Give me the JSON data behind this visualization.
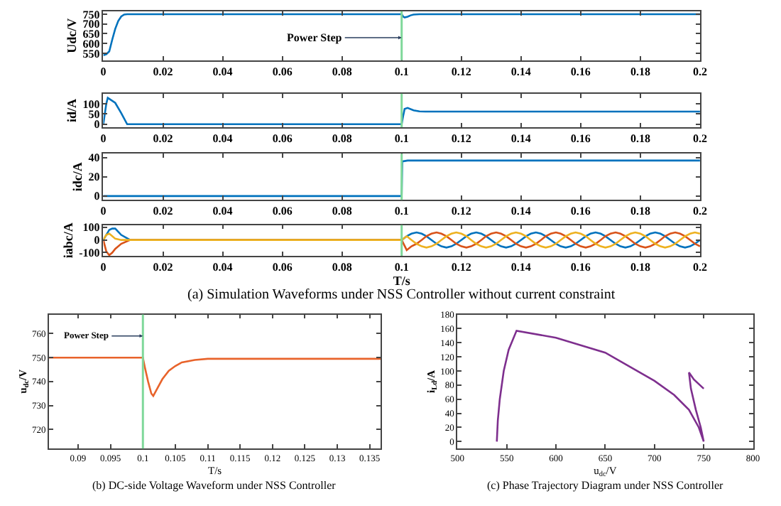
{
  "chart_data": [
    {
      "type": "line",
      "ylabel": "Udc/V",
      "xlim": [
        0,
        0.2
      ],
      "xticks": [
        0,
        0.02,
        0.04,
        0.06,
        0.08,
        0.1,
        0.12,
        0.14,
        0.16,
        0.18,
        0.2
      ],
      "ylim": [
        515,
        765
      ],
      "yticks": [
        550,
        600,
        650,
        700,
        750
      ],
      "x": [
        0,
        0.001,
        0.002,
        0.003,
        0.004,
        0.005,
        0.006,
        0.007,
        0.008,
        0.1,
        0.1005,
        0.101,
        0.102,
        0.103,
        0.104,
        0.106,
        0.2
      ],
      "series": [
        {
          "color": "#0072bd",
          "values": [
            540,
            545,
            560,
            620,
            675,
            715,
            738,
            748,
            750,
            750,
            738,
            733,
            737,
            744,
            748,
            750,
            750
          ]
        }
      ],
      "ref_lines": [
        {
          "axis": "x",
          "value": 0.1,
          "label": "Power Step",
          "color": "#7fd89a"
        }
      ]
    },
    {
      "type": "line",
      "ylabel": "id/A",
      "xlim": [
        0,
        0.2
      ],
      "xticks": [
        0,
        0.02,
        0.04,
        0.06,
        0.08,
        0.1,
        0.12,
        0.14,
        0.16,
        0.18,
        0.2
      ],
      "ylim": [
        -15,
        150
      ],
      "yticks": [
        0,
        50,
        100
      ],
      "x": [
        0,
        0.001,
        0.0015,
        0.004,
        0.006,
        0.008,
        0.1,
        0.1005,
        0.101,
        0.102,
        0.104,
        0.106,
        0.108,
        0.2
      ],
      "series": [
        {
          "color": "#0072bd",
          "values": [
            0,
            100,
            130,
            105,
            55,
            0,
            0,
            40,
            75,
            80,
            68,
            63,
            62,
            62
          ]
        }
      ],
      "ref_lines": [
        {
          "axis": "x",
          "value": 0.1,
          "color": "#7fd89a"
        }
      ]
    },
    {
      "type": "line",
      "ylabel": "idc/A",
      "xlim": [
        0,
        0.2
      ],
      "xticks": [
        0,
        0.02,
        0.04,
        0.06,
        0.08,
        0.1,
        0.12,
        0.14,
        0.16,
        0.18,
        0.2
      ],
      "ylim": [
        -4,
        44
      ],
      "yticks": [
        0,
        20,
        40
      ],
      "x": [
        0,
        0.1,
        0.1002,
        0.102,
        0.2
      ],
      "series": [
        {
          "color": "#0072bd",
          "values": [
            0,
            0,
            36,
            37,
            37
          ]
        }
      ],
      "ref_lines": [
        {
          "axis": "x",
          "value": 0.1,
          "color": "#7fd89a"
        }
      ]
    },
    {
      "type": "line",
      "ylabel": "iabc/A",
      "xlabel": "T/s",
      "xlim": [
        0,
        0.2
      ],
      "xticks": [
        0,
        0.02,
        0.04,
        0.06,
        0.08,
        0.1,
        0.12,
        0.14,
        0.16,
        0.18,
        0.2
      ],
      "ylim": [
        -125,
        118
      ],
      "yticks": [
        -100,
        0,
        100
      ],
      "x": [
        0,
        0.001,
        0.002,
        0.003,
        0.004,
        0.006,
        0.009,
        0.1,
        0.1017,
        0.1033,
        0.105,
        0.1067,
        0.1083,
        0.11,
        0.1117,
        0.1133,
        0.115,
        0.1167,
        0.1183,
        0.12,
        0.1217,
        0.1233,
        0.125,
        0.1267,
        0.1283,
        0.13,
        0.1317,
        0.1333,
        0.135,
        0.1367,
        0.1383,
        0.14,
        0.1417,
        0.1433,
        0.145,
        0.1467,
        0.1483,
        0.15,
        0.1517,
        0.1533,
        0.155,
        0.1567,
        0.1583,
        0.16,
        0.1617,
        0.1633,
        0.165,
        0.1667,
        0.1683,
        0.17,
        0.1717,
        0.1733,
        0.175,
        0.1767,
        0.1783,
        0.18,
        0.1817,
        0.1833,
        0.185,
        0.1867,
        0.1883,
        0.19,
        0.1917,
        0.1933,
        0.195,
        0.1967,
        0.1983,
        0.2
      ],
      "series": [
        {
          "color": "#0072bd",
          "values": [
            0,
            40,
            80,
            90,
            90,
            40,
            0,
            0,
            30,
            50,
            60,
            50,
            30,
            0,
            -30,
            -50,
            -60,
            -50,
            -30,
            0,
            30,
            50,
            60,
            50,
            30,
            0,
            -30,
            -50,
            -60,
            -50,
            -30,
            0,
            30,
            50,
            60,
            50,
            30,
            0,
            -30,
            -50,
            -60,
            -50,
            -30,
            0,
            30,
            50,
            60,
            50,
            30,
            0,
            -30,
            -50,
            -60,
            -50,
            -30,
            0,
            30,
            50,
            60,
            50,
            30,
            0,
            -30,
            -50,
            -60,
            -50,
            -30,
            0
          ]
        },
        {
          "color": "#d95319",
          "values": [
            0,
            -90,
            -120,
            -100,
            -70,
            -30,
            0,
            0,
            -80,
            -50,
            -30,
            0,
            30,
            50,
            60,
            50,
            30,
            0,
            -30,
            -50,
            -60,
            -50,
            -30,
            0,
            30,
            50,
            60,
            50,
            30,
            0,
            -30,
            -50,
            -60,
            -50,
            -30,
            0,
            30,
            50,
            60,
            50,
            30,
            0,
            -30,
            -50,
            -60,
            -50,
            -30,
            0,
            30,
            50,
            60,
            50,
            30,
            0,
            -30,
            -50,
            -60,
            -50,
            -30,
            0,
            30,
            50,
            60,
            50,
            30,
            0,
            -30,
            -50
          ]
        },
        {
          "color": "#edb120",
          "values": [
            0,
            40,
            50,
            30,
            10,
            0,
            0,
            0,
            30,
            0,
            -30,
            -50,
            -60,
            -50,
            -30,
            0,
            30,
            50,
            60,
            50,
            30,
            0,
            -30,
            -50,
            -60,
            -50,
            -30,
            0,
            30,
            50,
            60,
            50,
            30,
            0,
            -30,
            -50,
            -60,
            -50,
            -30,
            0,
            30,
            50,
            60,
            50,
            30,
            0,
            -30,
            -50,
            -60,
            -50,
            -30,
            0,
            30,
            50,
            60,
            50,
            30,
            0,
            -30,
            -50,
            -60,
            -50,
            -30,
            0,
            30,
            50,
            60,
            50
          ]
        }
      ],
      "ref_lines": [
        {
          "axis": "x",
          "value": 0.1,
          "color": "#7fd89a"
        }
      ],
      "annotations": [
        "(a) Simulation Waveforms under NSS Controller without current constraint"
      ]
    },
    {
      "type": "line",
      "ylabel": "u$_{dc}$/V",
      "xlabel": "T/s",
      "xlim": [
        0.0855,
        0.1367
      ],
      "xticks": [
        0.09,
        0.095,
        0.1,
        0.105,
        0.11,
        0.115,
        0.12,
        0.125,
        0.13,
        0.135
      ],
      "ylim": [
        712,
        768
      ],
      "yticks": [
        720,
        730,
        740,
        750,
        760
      ],
      "x": [
        0.0855,
        0.1,
        0.1003,
        0.1008,
        0.1013,
        0.1016,
        0.102,
        0.103,
        0.104,
        0.105,
        0.106,
        0.108,
        0.11,
        0.1367
      ],
      "series": [
        {
          "color": "#e8632b",
          "values": [
            750,
            750,
            746,
            740,
            735,
            734,
            736,
            741,
            744.5,
            746.5,
            748,
            749,
            749.5,
            749.5
          ]
        }
      ],
      "ref_lines": [
        {
          "axis": "x",
          "value": 0.1,
          "label": "Power Step",
          "color": "#7fd89a"
        }
      ],
      "annotations": [
        "(b) DC-side Voltage Waveform under NSS Controller"
      ]
    },
    {
      "type": "line",
      "ylabel": "i$_{Ld}$/A",
      "xlabel": "u$_{dc}$/V",
      "xlim": [
        500,
        800
      ],
      "xticks": [
        500,
        550,
        600,
        650,
        700,
        750,
        800
      ],
      "ylim": [
        -10,
        180
      ],
      "yticks": [
        0,
        20,
        40,
        60,
        80,
        100,
        120,
        140,
        160,
        180
      ],
      "x": [
        540,
        541,
        543,
        547,
        552,
        560,
        600,
        650,
        700,
        720,
        735,
        745,
        750,
        747,
        742,
        737,
        735,
        740,
        750
      ],
      "series": [
        {
          "color": "#7e2f8e",
          "values": [
            0,
            30,
            60,
            100,
            130,
            157,
            147,
            126,
            86,
            66,
            45,
            20,
            0,
            20,
            45,
            75,
            98,
            88,
            75
          ]
        }
      ],
      "annotations": [
        "(c) Phase Trajectory Diagram under NSS Controller"
      ]
    }
  ]
}
